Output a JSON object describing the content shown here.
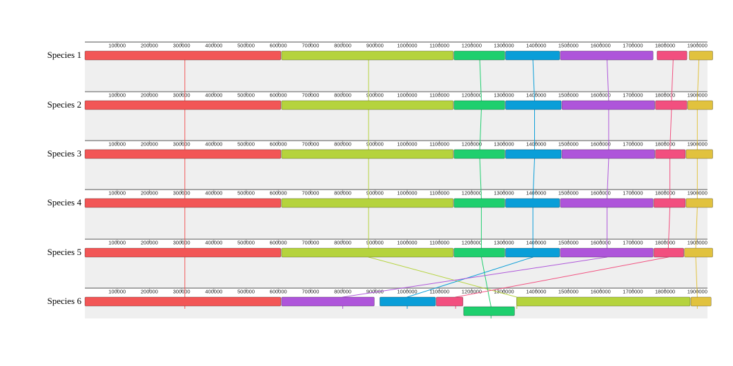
{
  "ruler": {
    "ticks": [
      "100000",
      "200000",
      "300000",
      "400000",
      "500000",
      "600000",
      "700000",
      "800000",
      "900000",
      "1000000",
      "1100000",
      "1200000",
      "1300000",
      "1400000",
      "1500000",
      "1600000",
      "1700000",
      "1800000",
      "1900000"
    ]
  },
  "species": [
    {
      "label": "Species 1",
      "blocks": [
        {
          "start": 0,
          "end": 610000,
          "color": "red"
        },
        {
          "start": 610000,
          "end": 1145000,
          "color": "lime"
        },
        {
          "start": 1145000,
          "end": 1305000,
          "color": "green"
        },
        {
          "start": 1305000,
          "end": 1475000,
          "color": "blue"
        },
        {
          "start": 1475000,
          "end": 1765000,
          "color": "purple"
        },
        {
          "start": 1775000,
          "end": 1870000,
          "color": "pink"
        },
        {
          "start": 1875000,
          "end": 1950000,
          "color": "yellow"
        }
      ]
    },
    {
      "label": "Species 2",
      "blocks": [
        {
          "start": 0,
          "end": 610000,
          "color": "red"
        },
        {
          "start": 610000,
          "end": 1145000,
          "color": "lime"
        },
        {
          "start": 1145000,
          "end": 1305000,
          "color": "green"
        },
        {
          "start": 1305000,
          "end": 1480000,
          "color": "blue"
        },
        {
          "start": 1480000,
          "end": 1770000,
          "color": "purple"
        },
        {
          "start": 1770000,
          "end": 1870000,
          "color": "pink"
        },
        {
          "start": 1870000,
          "end": 1950000,
          "color": "yellow"
        }
      ]
    },
    {
      "label": "Species 3",
      "blocks": [
        {
          "start": 0,
          "end": 610000,
          "color": "red"
        },
        {
          "start": 610000,
          "end": 1145000,
          "color": "lime"
        },
        {
          "start": 1145000,
          "end": 1305000,
          "color": "green"
        },
        {
          "start": 1305000,
          "end": 1480000,
          "color": "blue"
        },
        {
          "start": 1480000,
          "end": 1770000,
          "color": "purple"
        },
        {
          "start": 1770000,
          "end": 1865000,
          "color": "pink"
        },
        {
          "start": 1865000,
          "end": 1950000,
          "color": "yellow"
        }
      ]
    },
    {
      "label": "Species 4",
      "blocks": [
        {
          "start": 0,
          "end": 610000,
          "color": "red"
        },
        {
          "start": 610000,
          "end": 1145000,
          "color": "lime"
        },
        {
          "start": 1145000,
          "end": 1305000,
          "color": "green"
        },
        {
          "start": 1305000,
          "end": 1475000,
          "color": "blue"
        },
        {
          "start": 1475000,
          "end": 1765000,
          "color": "purple"
        },
        {
          "start": 1765000,
          "end": 1865000,
          "color": "pink"
        },
        {
          "start": 1865000,
          "end": 1950000,
          "color": "yellow"
        }
      ]
    },
    {
      "label": "Species 5",
      "blocks": [
        {
          "start": 0,
          "end": 610000,
          "color": "red"
        },
        {
          "start": 610000,
          "end": 1145000,
          "color": "lime"
        },
        {
          "start": 1145000,
          "end": 1305000,
          "color": "green"
        },
        {
          "start": 1305000,
          "end": 1475000,
          "color": "blue"
        },
        {
          "start": 1475000,
          "end": 1765000,
          "color": "purple"
        },
        {
          "start": 1765000,
          "end": 1860000,
          "color": "pink"
        },
        {
          "start": 1860000,
          "end": 1950000,
          "color": "yellow"
        }
      ]
    },
    {
      "label": "Species 6",
      "blocks": [
        {
          "start": 0,
          "end": 610000,
          "color": "red"
        },
        {
          "start": 610000,
          "end": 900000,
          "color": "purple"
        },
        {
          "start": 915000,
          "end": 1090000,
          "color": "blue"
        },
        {
          "start": 1090000,
          "end": 1175000,
          "color": "pink"
        },
        {
          "start": 1175000,
          "end": 1335000,
          "color": "green",
          "inverted": true
        },
        {
          "start": 1340000,
          "end": 1880000,
          "color": "lime"
        },
        {
          "start": 1880000,
          "end": 1945000,
          "color": "yellow"
        }
      ]
    }
  ],
  "connectors": [
    {
      "color": "red",
      "x": [
        310000,
        310000,
        310000,
        310000,
        310000,
        310000
      ]
    },
    {
      "color": "lime",
      "x": [
        880000,
        880000,
        880000,
        880000,
        880000,
        1340000
      ]
    },
    {
      "color": "green",
      "x": [
        1225000,
        1230000,
        1225000,
        1230000,
        1230000,
        1260000
      ]
    },
    {
      "color": "blue",
      "x": [
        1390000,
        1395000,
        1395000,
        1390000,
        1390000,
        1000000
      ]
    },
    {
      "color": "purple",
      "x": [
        1620000,
        1625000,
        1625000,
        1620000,
        1620000,
        800000
      ]
    },
    {
      "color": "pink",
      "x": [
        1825000,
        1820000,
        1815000,
        1815000,
        1810000,
        1150000
      ]
    },
    {
      "color": "yellow",
      "x": [
        1905000,
        1900000,
        1900000,
        1900000,
        1895000,
        1900000
      ]
    }
  ],
  "colors": {
    "red": "#f25656",
    "lime": "#b5d33d",
    "green": "#1fcf6e",
    "blue": "#0a9ed8",
    "purple": "#ae55da",
    "pink": "#f24f7f",
    "yellow": "#e1c23e",
    "lane_bg": "#efefef",
    "ruler": "#888888"
  }
}
